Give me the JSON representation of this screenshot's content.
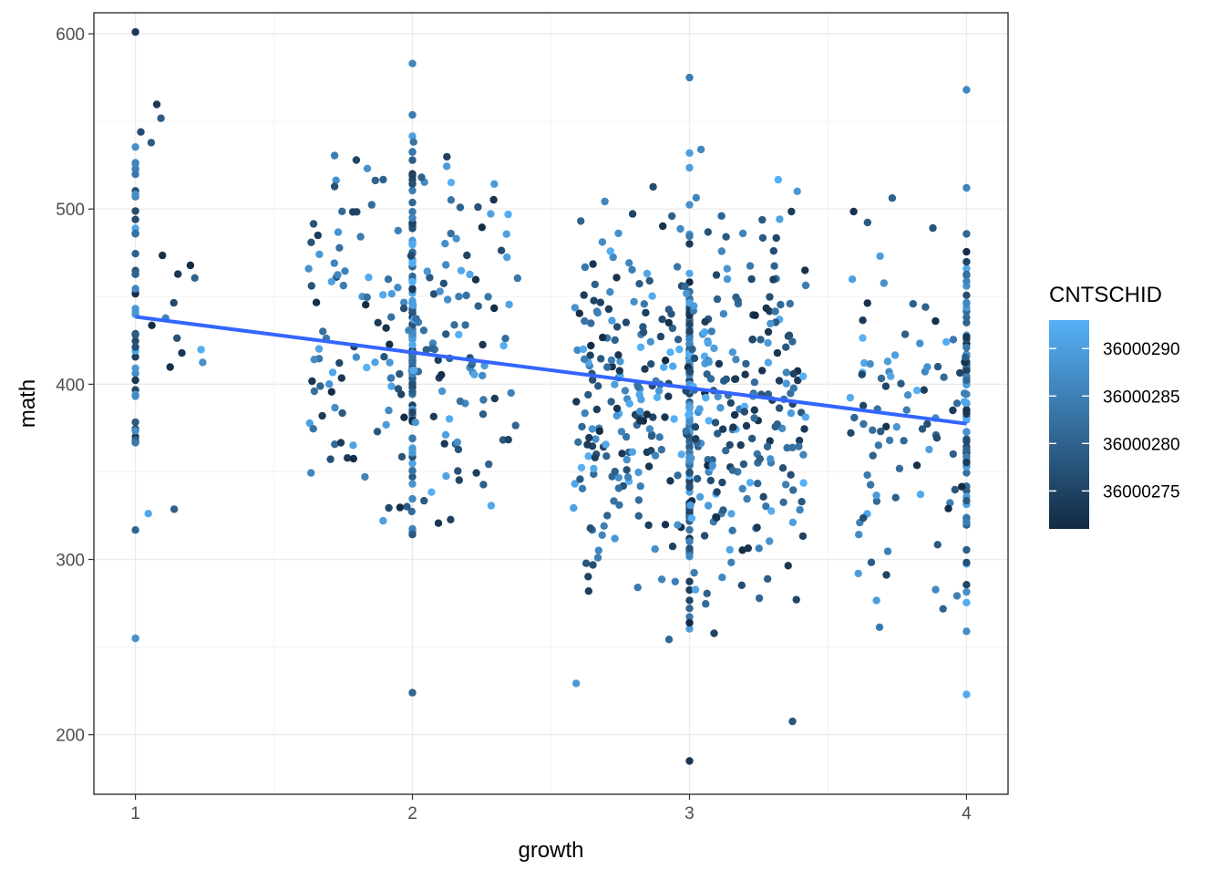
{
  "chart_data": {
    "type": "scatter",
    "title": "",
    "xlabel": "growth",
    "ylabel": "math",
    "xlim": [
      0.85,
      4.15
    ],
    "ylim": [
      166,
      612
    ],
    "x_ticks": [
      1,
      2,
      3,
      4
    ],
    "y_ticks": [
      200,
      300,
      400,
      500,
      600
    ],
    "x_tick_labels": [
      "1",
      "2",
      "3",
      "4"
    ],
    "y_tick_labels": [
      "200",
      "300",
      "400",
      "500",
      "600"
    ],
    "grid": true,
    "theme": "bw",
    "legend": {
      "title": "CNTSCHID",
      "placement": "right",
      "type": "colorbar",
      "range": [
        36000271,
        36000293
      ],
      "ticks": [
        36000275,
        36000280,
        36000285,
        36000290
      ],
      "tick_labels": [
        "36000275",
        "36000280",
        "36000285",
        "36000290"
      ],
      "low_color": "#132b43",
      "high_color": "#56b1f7"
    },
    "points_note_only": "",
    "groups": [
      {
        "x_center": 1,
        "spread": 0.13,
        "column_count": 45,
        "scatter_count": 18,
        "y_min": 255,
        "y_max": 601,
        "y_mean": 440,
        "y_sd": 90
      },
      {
        "x_center": 2,
        "spread": 0.38,
        "column_count": 110,
        "scatter_count": 190,
        "y_min": 224,
        "y_max": 583,
        "y_mean": 430,
        "y_sd": 75
      },
      {
        "x_center": 3,
        "spread": 0.42,
        "column_count": 140,
        "scatter_count": 420,
        "y_min": 185,
        "y_max": 575,
        "y_mean": 385,
        "y_sd": 80
      },
      {
        "x_center": 4,
        "spread": 0.42,
        "column_count": 80,
        "scatter_count": 90,
        "y_min": 223,
        "y_max": 568,
        "y_mean": 380,
        "y_sd": 80
      }
    ],
    "trend_line": {
      "x": [
        1,
        4
      ],
      "y": [
        438.5,
        377.5
      ],
      "color": "#3366ff"
    }
  }
}
